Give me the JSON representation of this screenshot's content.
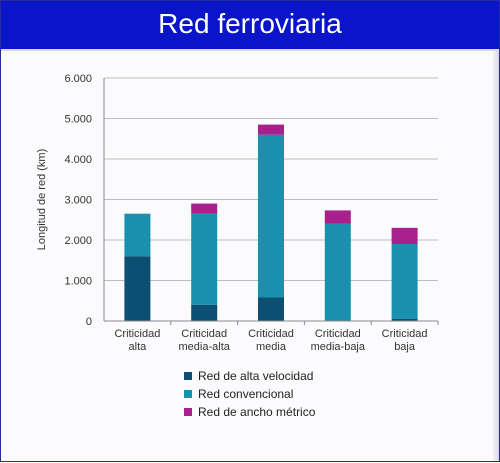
{
  "header": {
    "title": "Red ferroviaria"
  },
  "colors": {
    "title_bar": "#0a14c8",
    "series_high_speed": "#0c4f72",
    "series_conventional": "#1a8fae",
    "series_metric": "#a8208c",
    "axis": "#8a8a8a",
    "grid": "#bdbdbd"
  },
  "chart_data": {
    "type": "bar",
    "stacked": true,
    "ylabel": "Longitud de red (km)",
    "xlabel": "",
    "ylim": [
      0,
      6000
    ],
    "yticks": [
      0,
      1000,
      2000,
      3000,
      4000,
      5000,
      6000
    ],
    "ytick_labels": [
      "0",
      "1.000",
      "2.000",
      "3.000",
      "4.000",
      "5.000",
      "6.000"
    ],
    "grid": true,
    "legend_position": "bottom",
    "categories": [
      [
        "Criticidad",
        "alta"
      ],
      [
        "Criticidad",
        "media-alta"
      ],
      [
        "Criticidad",
        "media"
      ],
      [
        "Criticidad",
        "media-baja"
      ],
      [
        "Criticidad",
        "baja"
      ]
    ],
    "series": [
      {
        "name": "Red de alta velocidad",
        "color": "#0c4f72",
        "values": [
          1600,
          400,
          580,
          0,
          50
        ]
      },
      {
        "name": "Red convencional",
        "color": "#1a8fae",
        "values": [
          1050,
          2250,
          4020,
          2400,
          1850
        ]
      },
      {
        "name": "Red de ancho métrico",
        "color": "#a8208c",
        "values": [
          0,
          250,
          250,
          330,
          400
        ]
      }
    ]
  }
}
